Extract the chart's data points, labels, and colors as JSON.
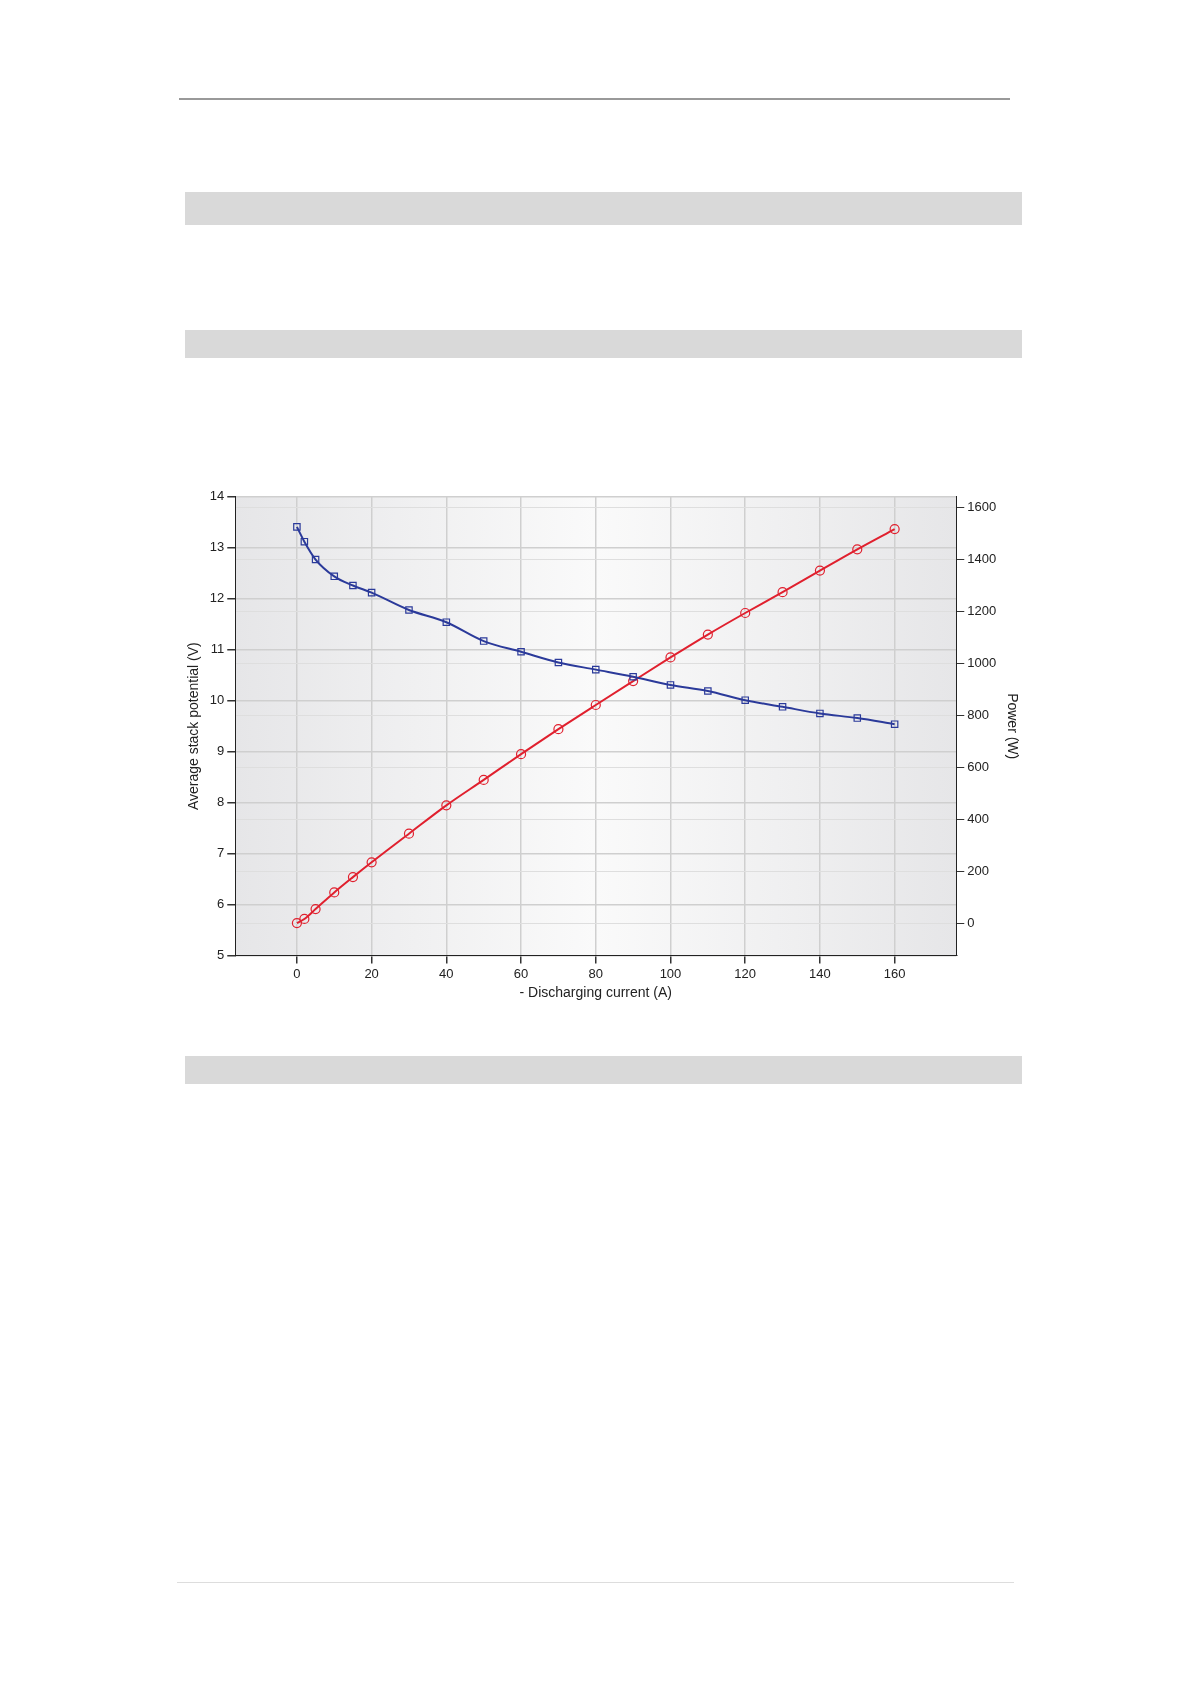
{
  "chart_data": {
    "type": "line",
    "xlabel": "- Discharging current (A)",
    "ylabel": "Average stack potential (V)",
    "y2label": "Power (W)",
    "x": [
      0,
      2,
      5,
      10,
      15,
      20,
      30,
      40,
      50,
      60,
      70,
      80,
      90,
      100,
      110,
      120,
      130,
      140,
      150,
      160
    ],
    "xlim": [
      -16.5,
      176.5
    ],
    "xticks": [
      0,
      20,
      40,
      60,
      80,
      100,
      120,
      140,
      160
    ],
    "ylim": [
      5,
      14
    ],
    "yticks": [
      5,
      6,
      7,
      8,
      9,
      10,
      11,
      12,
      13,
      14
    ],
    "y2lim": [
      -125,
      1640
    ],
    "y2ticks": [
      0,
      200,
      400,
      600,
      800,
      1000,
      1200,
      1400,
      1600
    ],
    "grid": true,
    "legend": false,
    "series": [
      {
        "color": "#2b3a9a",
        "marker": "square",
        "values": [
          13.41,
          13.12,
          12.77,
          12.44,
          12.26,
          12.12,
          11.78,
          11.54,
          11.17,
          10.96,
          10.75,
          10.61,
          10.47,
          10.31,
          10.19,
          10.01,
          9.88,
          9.75,
          9.66,
          9.54
        ]
      },
      {
        "color": "#e0202e",
        "marker": "circle",
        "axis": "y2",
        "values": [
          0,
          16,
          54,
          118,
          177,
          234,
          344,
          453,
          551,
          650,
          746,
          839,
          931,
          1022,
          1110,
          1193,
          1273,
          1356,
          1438,
          1516
        ]
      }
    ]
  }
}
